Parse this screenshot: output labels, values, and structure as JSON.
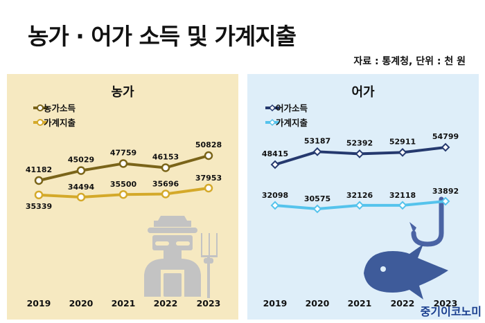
{
  "header": {
    "title": "농가 · 어가 소득 및 가계지출",
    "source": "자료 : 통계청, 단위 : 천 원"
  },
  "footer": {
    "brand": "중기이코노미"
  },
  "colors": {
    "farm_income": "#7a6419",
    "farm_expense": "#d4a92a",
    "fish_income": "#25396e",
    "fish_expense": "#55c3ec",
    "farm_bg": "#f6e9c1",
    "fish_bg": "#deeef9"
  },
  "icons": {
    "farm": "farmer-icon",
    "fish": [
      "fishhook-icon",
      "fish-icon"
    ]
  },
  "chart_data": [
    {
      "type": "line",
      "title": "농가",
      "categories": [
        "2019",
        "2020",
        "2021",
        "2022",
        "2023"
      ],
      "series": [
        {
          "name": "농가소득",
          "values": [
            41182,
            45029,
            47759,
            46153,
            50828
          ],
          "color": "#7a6419",
          "marker": "circle"
        },
        {
          "name": "가계지출",
          "values": [
            35339,
            34494,
            35500,
            35696,
            37953
          ],
          "color": "#d4a92a",
          "marker": "circle"
        }
      ],
      "legend": "top-left",
      "grid": false
    },
    {
      "type": "line",
      "title": "어가",
      "categories": [
        "2019",
        "2020",
        "2021",
        "2022",
        "2023"
      ],
      "series": [
        {
          "name": "어가소득",
          "values": [
            48415,
            53187,
            52392,
            52911,
            54799
          ],
          "color": "#25396e",
          "marker": "diamond"
        },
        {
          "name": "가계지출",
          "values": [
            32098,
            30575,
            32126,
            32118,
            33892
          ],
          "color": "#55c3ec",
          "marker": "diamond"
        }
      ],
      "legend": "top-left",
      "grid": false
    }
  ]
}
